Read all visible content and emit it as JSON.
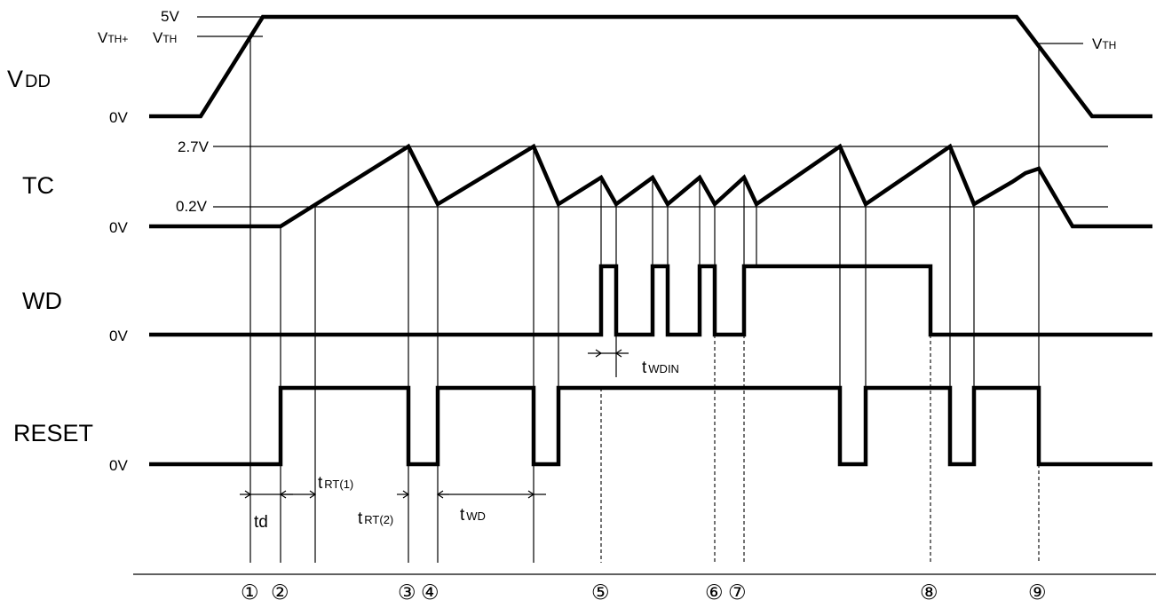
{
  "signals": {
    "vdd": {
      "name": "V",
      "name_sub": "DD",
      "zero": "0V",
      "high": "5V",
      "vth_left": "V",
      "vth_left_sub": "TH+",
      "vth_left2": "V",
      "vth_left2_sub": "TH",
      "vth_right": "V",
      "vth_right_sub": "TH"
    },
    "tc": {
      "name": "TC",
      "zero": "0V",
      "upper": "2.7V",
      "lower": "0.2V"
    },
    "wd": {
      "name": "WD",
      "zero": "0V"
    },
    "reset": {
      "name": "RESET",
      "zero": "0V"
    }
  },
  "timings": {
    "td": "td",
    "trt1": "t",
    "trt1_sub": "RT(1)",
    "trt2": "t",
    "trt2_sub": "RT(2)",
    "twd": "t",
    "twd_sub": "WD",
    "twdin": "t",
    "twdin_sub": "WDIN"
  },
  "markers": [
    "①",
    "②",
    "③",
    "④",
    "⑤",
    "⑥",
    "⑦",
    "⑧",
    "⑨"
  ]
}
